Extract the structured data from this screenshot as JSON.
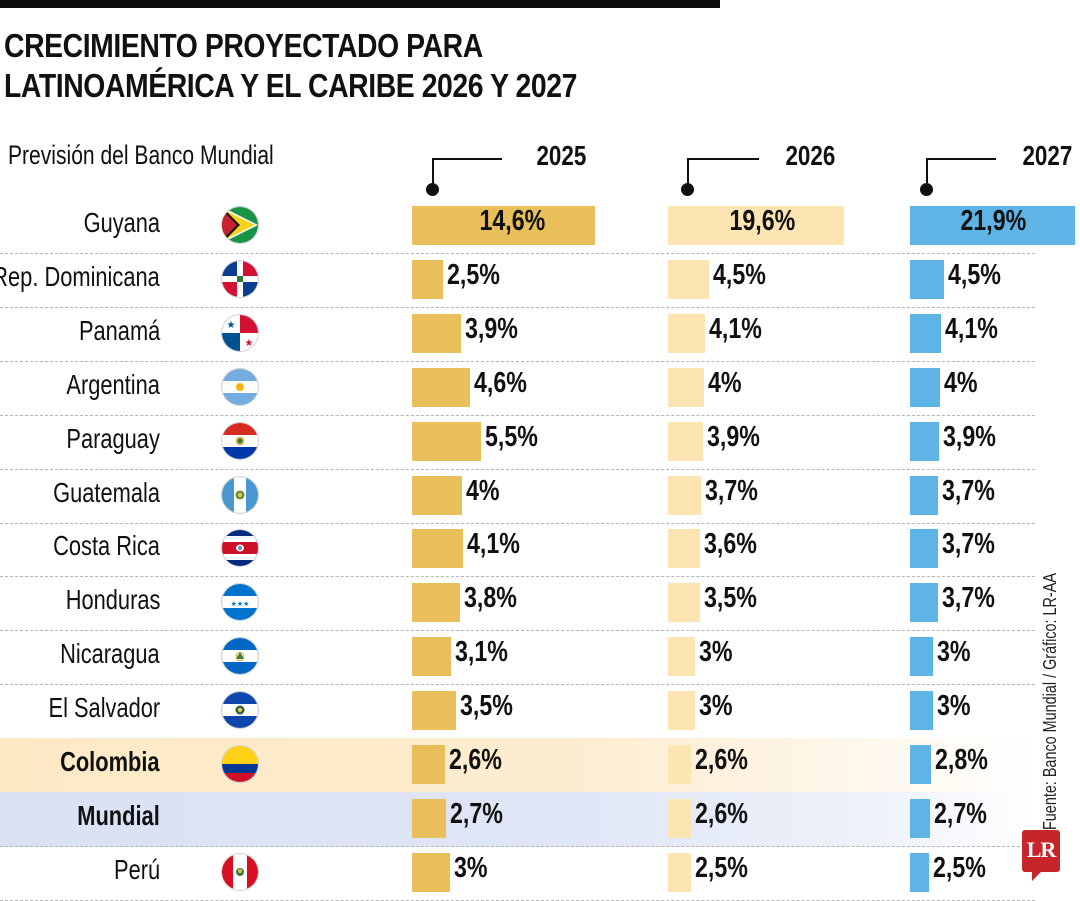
{
  "header": {
    "title_line1": "CRECIMIENTO PROYECTADO PARA",
    "title_line2": "LATINOAMÉRICA Y EL CARIBE 2026 Y 2027",
    "subtitle": "Previsión del Banco Mundial"
  },
  "colors": {
    "y2025": "#e8bf5a",
    "y2026": "#fde5b3",
    "y2027": "#5db4e5",
    "highlight_colombia": "#fde9c4",
    "highlight_world": "#d9e1f3",
    "logo": "#c8242b"
  },
  "chart_data": {
    "type": "bar",
    "title": "CRECIMIENTO PROYECTADO PARA LATINOAMÉRICA Y EL CARIBE 2026 Y 2027",
    "subtitle": "Previsión del Banco Mundial",
    "unit": "%",
    "categories": [
      "Guyana",
      "Rep. Dominicana",
      "Panamá",
      "Argentina",
      "Paraguay",
      "Guatemala",
      "Costa Rica",
      "Honduras",
      "Nicaragua",
      "El Salvador",
      "Colombia",
      "Mundial",
      "Perú"
    ],
    "flags": [
      "guyana-flag",
      "dominican-republic-flag",
      "panama-flag",
      "argentina-flag",
      "paraguay-flag",
      "guatemala-flag",
      "costa-rica-flag",
      "honduras-flag",
      "nicaragua-flag",
      "el-salvador-flag",
      "colombia-flag",
      null,
      "peru-flag"
    ],
    "highlight": {
      "Colombia": "colombia",
      "Mundial": "world"
    },
    "series": [
      {
        "name": "2025",
        "values": [
          14.6,
          2.5,
          3.9,
          4.6,
          5.5,
          4.0,
          4.1,
          3.8,
          3.1,
          3.5,
          2.6,
          2.7,
          3.0
        ],
        "labels": [
          "14,6%",
          "2,5%",
          "3,9%",
          "4,6%",
          "5,5%",
          "4%",
          "4,1%",
          "3,8%",
          "3,1%",
          "3,5%",
          "2,6%",
          "2,7%",
          "3%"
        ]
      },
      {
        "name": "2026",
        "values": [
          19.6,
          4.5,
          4.1,
          4.0,
          3.9,
          3.7,
          3.6,
          3.5,
          3.0,
          3.0,
          2.6,
          2.6,
          2.5
        ],
        "labels": [
          "19,6%",
          "4,5%",
          "4,1%",
          "4%",
          "3,9%",
          "3,7%",
          "3,6%",
          "3,5%",
          "3%",
          "3%",
          "2,6%",
          "2,6%",
          "2,5%"
        ]
      },
      {
        "name": "2027",
        "values": [
          21.9,
          4.5,
          4.1,
          4.0,
          3.9,
          3.7,
          3.7,
          3.7,
          3.0,
          3.0,
          2.8,
          2.7,
          2.5
        ],
        "labels": [
          "21,9%",
          "4,5%",
          "4,1%",
          "4%",
          "3,9%",
          "3,7%",
          "3,7%",
          "3,7%",
          "3%",
          "3%",
          "2,8%",
          "2,7%",
          "2,5%"
        ]
      }
    ],
    "xlabel": "",
    "ylabel": "",
    "grid": false,
    "legend": "column-headers"
  },
  "footer": {
    "source": "Fuente: Banco Mundial / Gráfico: LR-AA",
    "logo_text": "LR"
  }
}
